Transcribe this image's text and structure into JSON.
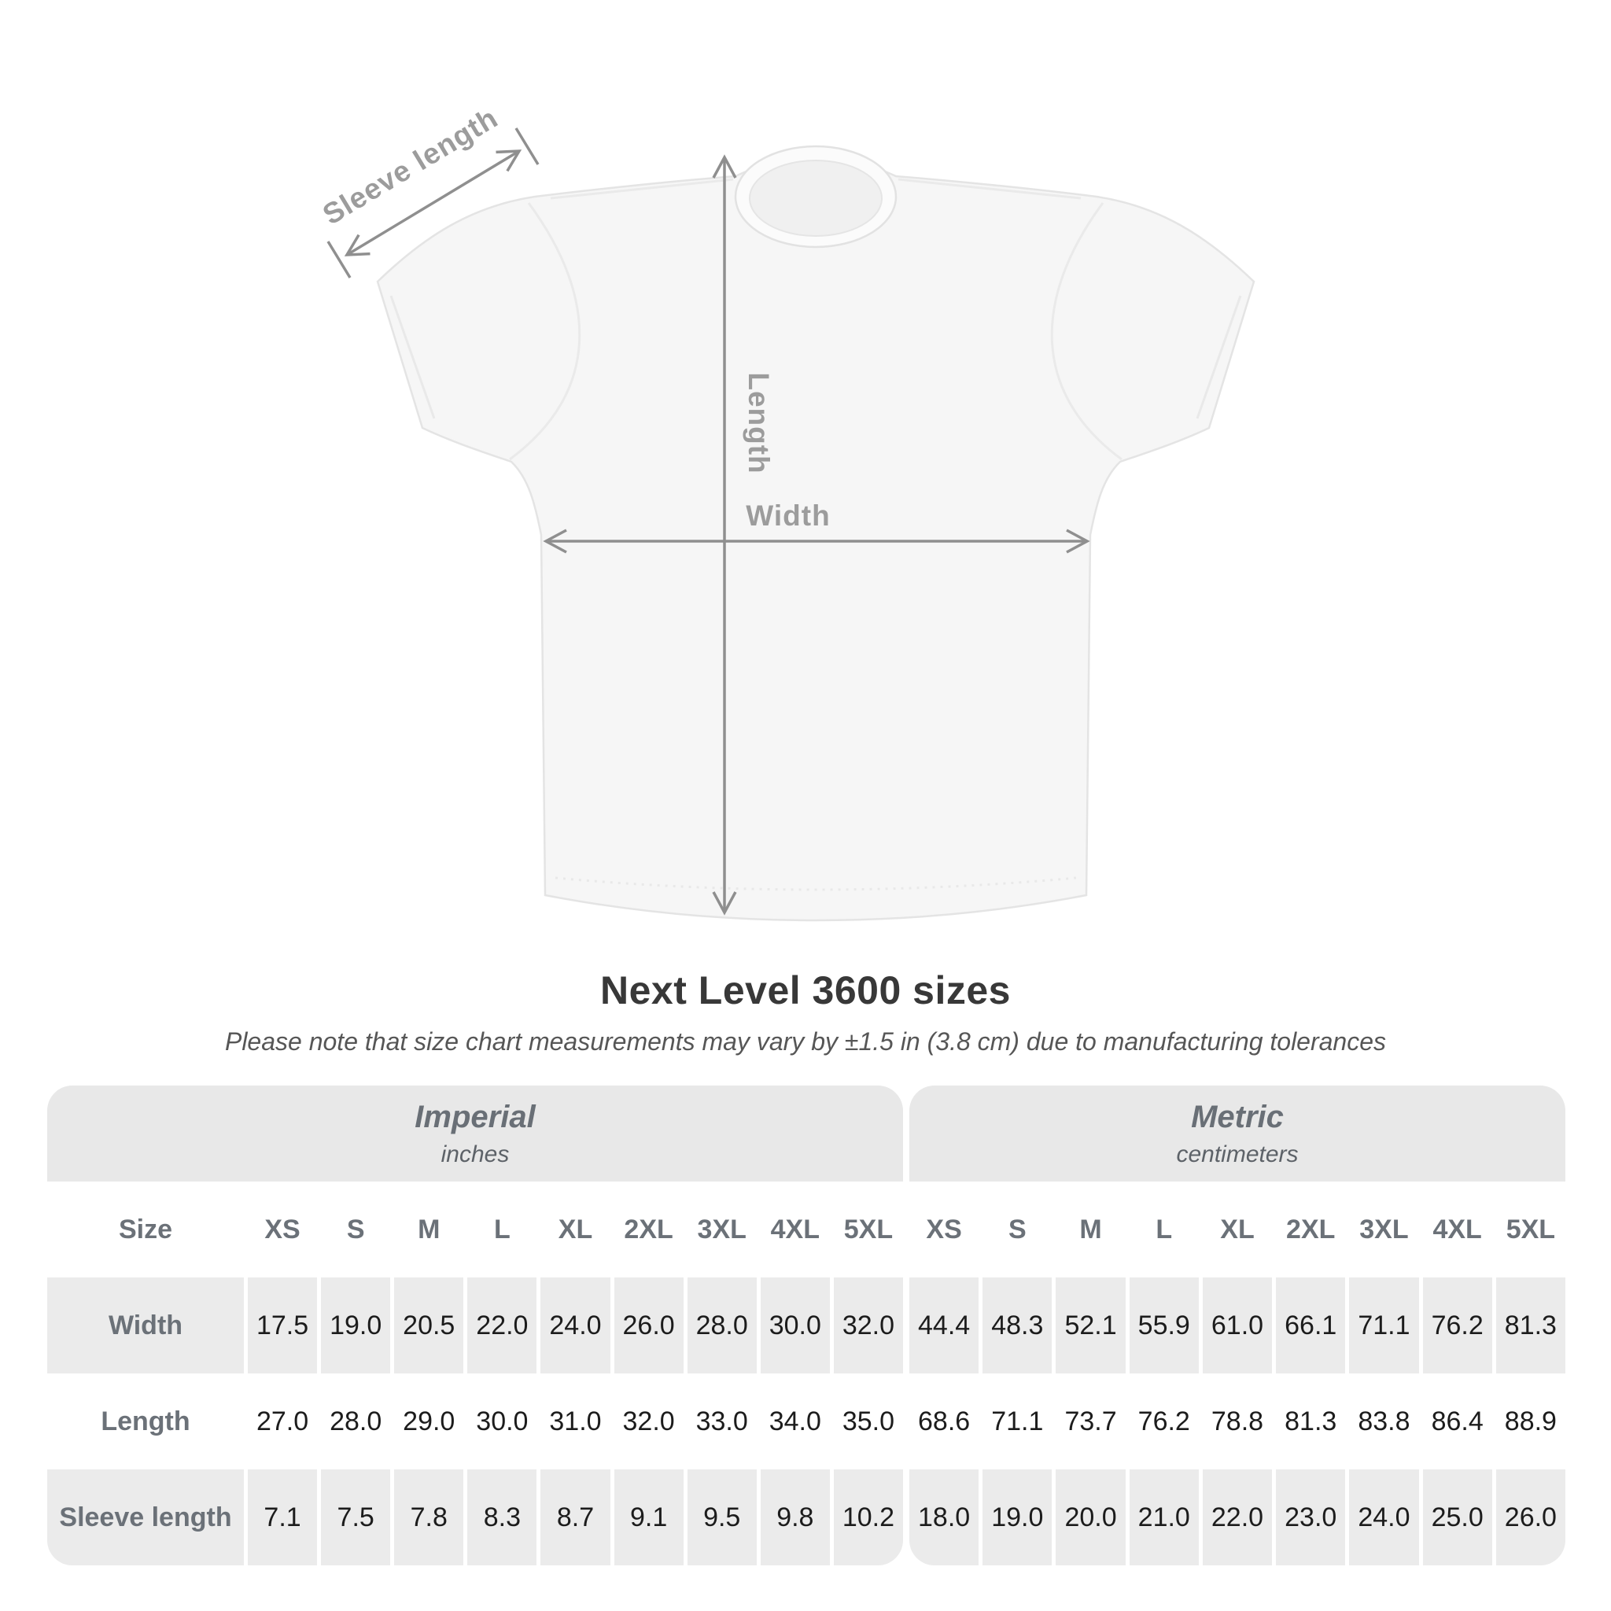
{
  "diagram": {
    "sleeve_length_label": "Sleeve length",
    "length_label": "Length",
    "width_label": "Width"
  },
  "heading": {
    "title": "Next Level 3600 sizes",
    "subtitle": "Please note that size chart measurements may vary by ±1.5 in (3.8 cm) due to manufacturing tolerances"
  },
  "table": {
    "size_label": "Size",
    "sizes": [
      "XS",
      "S",
      "M",
      "L",
      "XL",
      "2XL",
      "3XL",
      "4XL",
      "5XL"
    ],
    "groups": [
      {
        "name": "Imperial",
        "unit": "inches"
      },
      {
        "name": "Metric",
        "unit": "centimeters"
      }
    ],
    "rows": [
      {
        "label": "Width",
        "imperial": [
          "17.5",
          "19.0",
          "20.5",
          "22.0",
          "24.0",
          "26.0",
          "28.0",
          "30.0",
          "32.0"
        ],
        "metric": [
          "44.4",
          "48.3",
          "52.1",
          "55.9",
          "61.0",
          "66.1",
          "71.1",
          "76.2",
          "81.3"
        ]
      },
      {
        "label": "Length",
        "imperial": [
          "27.0",
          "28.0",
          "29.0",
          "30.0",
          "31.0",
          "32.0",
          "33.0",
          "34.0",
          "35.0"
        ],
        "metric": [
          "68.6",
          "71.1",
          "73.7",
          "76.2",
          "78.8",
          "81.3",
          "83.8",
          "86.4",
          "88.9"
        ]
      },
      {
        "label": "Sleeve length",
        "imperial": [
          "7.1",
          "7.5",
          "7.8",
          "8.3",
          "8.7",
          "9.1",
          "9.5",
          "9.8",
          "10.2"
        ],
        "metric": [
          "18.0",
          "19.0",
          "20.0",
          "21.0",
          "22.0",
          "23.0",
          "24.0",
          "25.0",
          "26.0"
        ]
      }
    ]
  },
  "colors": {
    "table_band": "#e8e8e8",
    "row_stripe": "#ebebeb",
    "header_text": "#6b7178",
    "value_text": "#1c1c1c",
    "dimension_label_gray": "#9c9c9c",
    "arrow_gray": "#8f8f8f",
    "shirt_fill": "#f6f6f6"
  }
}
